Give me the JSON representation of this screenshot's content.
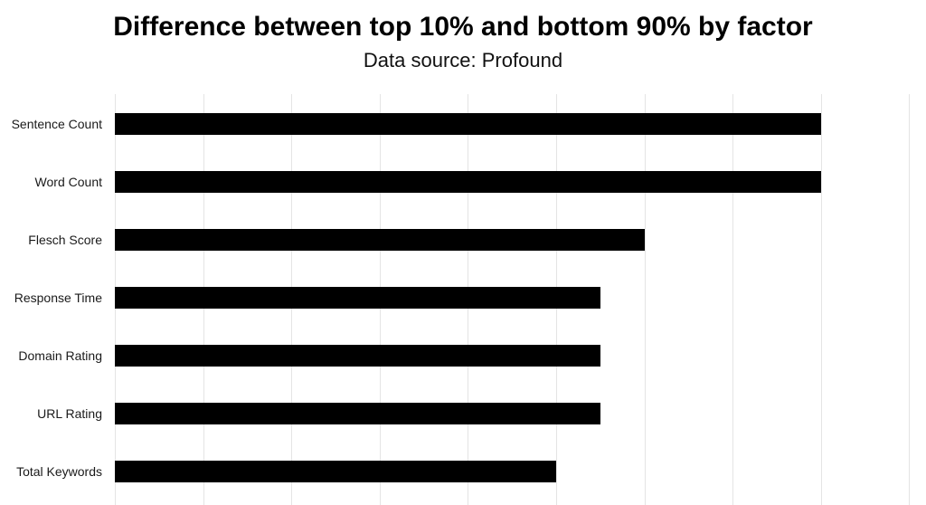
{
  "chart_data": {
    "type": "bar",
    "orientation": "horizontal",
    "title": "Difference between top 10% and bottom 90% by factor",
    "subtitle": "Data source: Profound",
    "categories": [
      "Sentence Count",
      "Word Count",
      "Flesch Score",
      "Response Time",
      "Domain Rating",
      "URL Rating",
      "Total Keywords"
    ],
    "values": [
      8,
      8,
      6,
      5.5,
      5.5,
      5.5,
      5
    ],
    "value_scale_note": "values in gridline units; x-axis tick labels not visible (chart cropped at bottom)",
    "xlim": [
      0,
      9.19
    ],
    "legend": "none",
    "gridlines": {
      "vertical": true,
      "horizontal": false,
      "count": 10,
      "unit_step": 1
    },
    "colors": {
      "bar": "#000000",
      "gridline": "#e4e4e4",
      "text": "#000000",
      "background": "#ffffff"
    }
  }
}
